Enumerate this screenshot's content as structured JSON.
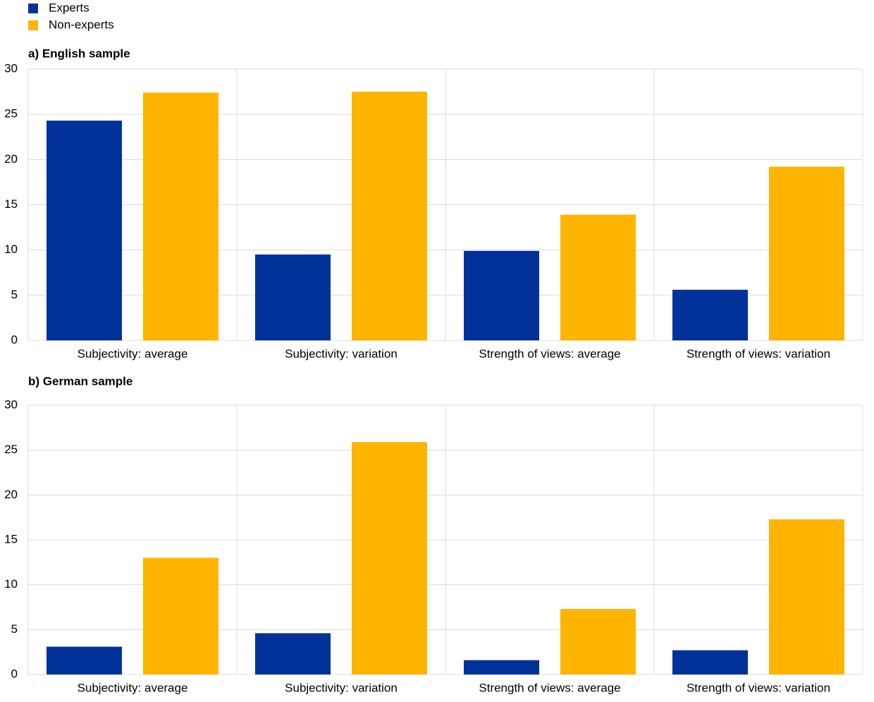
{
  "chart_data": [
    {
      "type": "bar",
      "title": "a) English sample",
      "categories": [
        "Subjectivity: average",
        "Subjectivity: variation",
        "Strength of views: average",
        "Strength of views: variation"
      ],
      "series": [
        {
          "name": "Experts",
          "color": "#003299",
          "values": [
            24.3,
            9.5,
            9.9,
            5.6
          ]
        },
        {
          "name": "Non-experts",
          "color": "#ffb400",
          "values": [
            27.4,
            27.5,
            13.9,
            19.2
          ]
        }
      ],
      "ylim": [
        0,
        30
      ],
      "yticks": [
        0,
        5,
        10,
        15,
        20,
        25,
        30
      ],
      "grid": true
    },
    {
      "type": "bar",
      "title": "b) German sample",
      "categories": [
        "Subjectivity: average",
        "Subjectivity: variation",
        "Strength of views: average",
        "Strength of views: variation"
      ],
      "series": [
        {
          "name": "Experts",
          "color": "#003299",
          "values": [
            3.1,
            4.6,
            1.6,
            2.7
          ]
        },
        {
          "name": "Non-experts",
          "color": "#ffb400",
          "values": [
            13.0,
            25.9,
            7.3,
            17.3
          ]
        }
      ],
      "ylim": [
        0,
        30
      ],
      "yticks": [
        0,
        5,
        10,
        15,
        20,
        25,
        30
      ],
      "grid": true
    }
  ]
}
